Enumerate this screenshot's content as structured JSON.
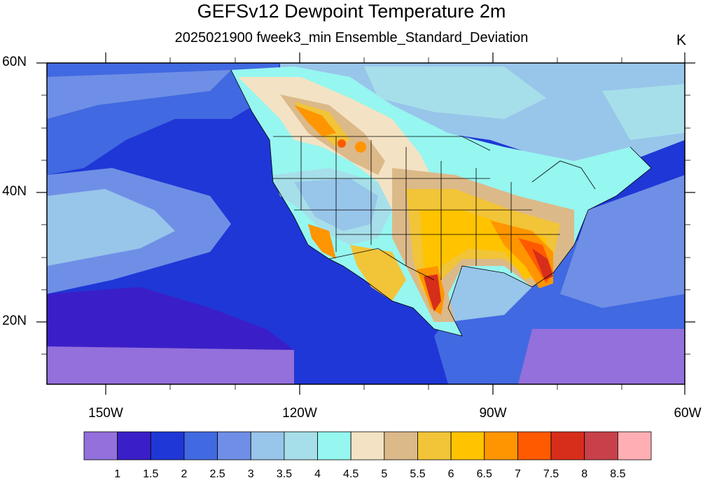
{
  "header": {
    "title": "GEFSv12 Dewpoint Temperature 2m",
    "subtitle": "2025021900 fweek3_min Ensemble_Standard_Deviation",
    "units": "K"
  },
  "map": {
    "lat_ticks": [
      {
        "label": "60N",
        "lat": 60
      },
      {
        "label": "40N",
        "lat": 40
      },
      {
        "label": "20N",
        "lat": 20
      }
    ],
    "lon_ticks": [
      {
        "label": "150W",
        "lon": -150
      },
      {
        "label": "120W",
        "lon": -120
      },
      {
        "label": "90W",
        "lon": -90
      },
      {
        "label": "60W",
        "lon": -60
      }
    ],
    "extent": {
      "lon_min": -159,
      "lon_max": -60,
      "lat_min": 10,
      "lat_max": 60
    }
  },
  "colorbar": {
    "colors": [
      "#9370db",
      "#3a1fc8",
      "#1f37d6",
      "#4169e1",
      "#6f8fe6",
      "#98c5ea",
      "#a6dfe9",
      "#96f6f0",
      "#f3e3c4",
      "#dcb989",
      "#f2c438",
      "#ffc300",
      "#ff9500",
      "#ff5a00",
      "#d62e1b",
      "#c8414a",
      "#ffafb4"
    ],
    "labels": [
      "1",
      "1.5",
      "2",
      "2.5",
      "3",
      "3.5",
      "4",
      "4.5",
      "5",
      "5.5",
      "6",
      "6.5",
      "7",
      "7.5",
      "8",
      "8.5"
    ]
  }
}
